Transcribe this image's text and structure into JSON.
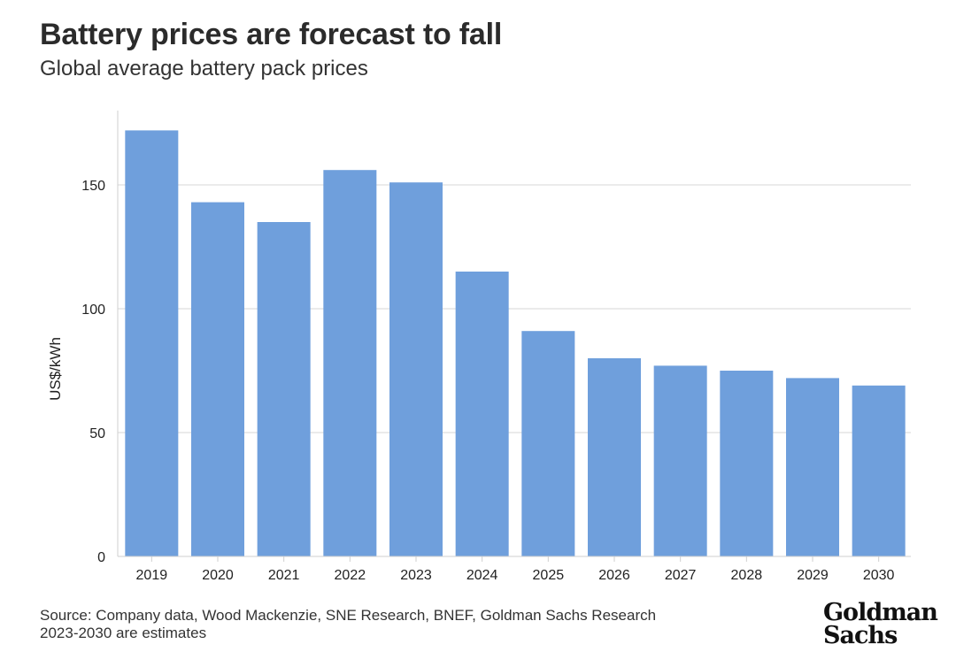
{
  "header": {
    "title": "Battery prices are forecast to fall",
    "subtitle": "Global average battery pack prices"
  },
  "chart_data": {
    "type": "bar",
    "categories": [
      "2019",
      "2020",
      "2021",
      "2022",
      "2023",
      "2024",
      "2025",
      "2026",
      "2027",
      "2028",
      "2029",
      "2030"
    ],
    "values": [
      172,
      143,
      135,
      156,
      151,
      115,
      91,
      80,
      77,
      75,
      72,
      69
    ],
    "ylabel": "US$/kWh",
    "xlabel": "",
    "ylim": [
      0,
      180
    ],
    "yticks": [
      0,
      50,
      100,
      150
    ],
    "grid": true,
    "bar_color": "#6f9fdc"
  },
  "footer": {
    "source": "Source: Company data, Wood Mackenzie, SNE Research, BNEF, Goldman Sachs Research",
    "note": "2023-2030 are estimates"
  },
  "logo": {
    "line1": "Goldman",
    "line2": "Sachs"
  }
}
